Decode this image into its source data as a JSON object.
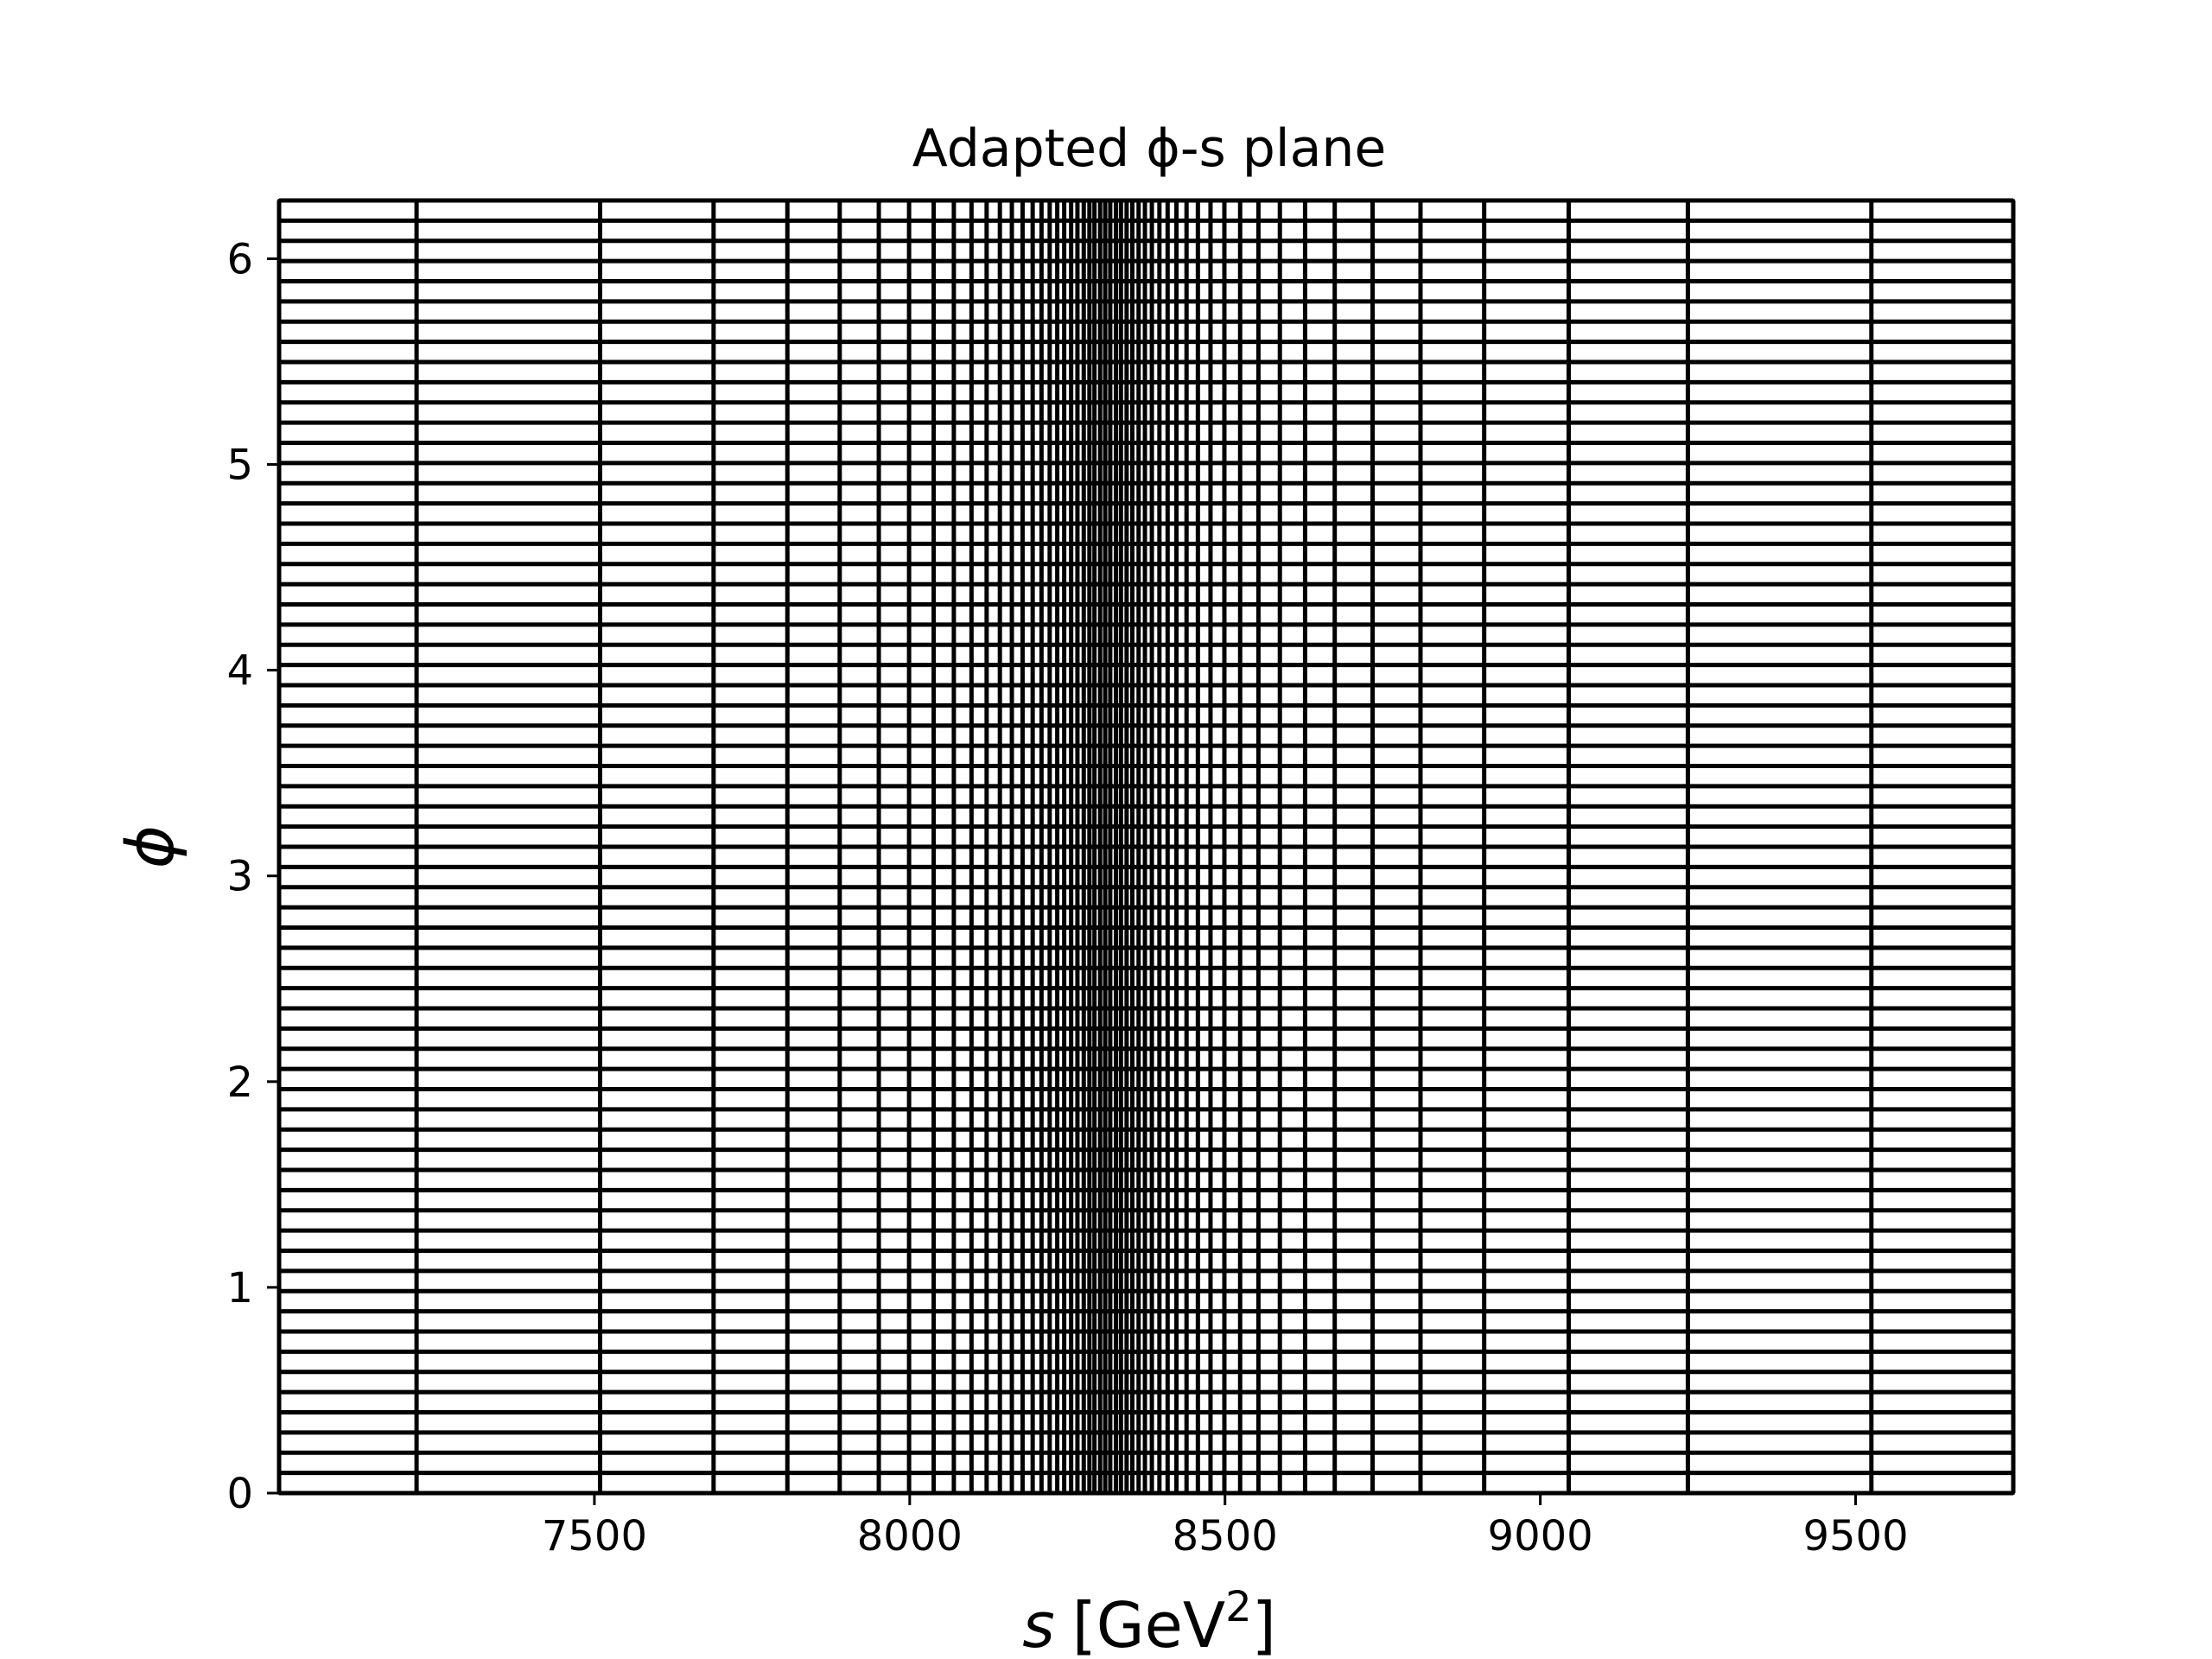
{
  "chart_data": {
    "type": "line",
    "title": "Adapted ϕ-s plane",
    "xlabel": "s [GeV²]",
    "xlabel_parts": {
      "var": "s",
      "unit_base": "[GeV",
      "unit_sup": "2",
      "unit_close": "]"
    },
    "ylabel": "ϕ",
    "xlim": [
      7000,
      9750
    ],
    "ylim": [
      0,
      6.2832
    ],
    "grid": false,
    "line_color": "#000000",
    "x_ticks": [
      7500,
      8000,
      8500,
      9000,
      9500
    ],
    "x_tick_labels": [
      "7500",
      "8000",
      "8500",
      "9000",
      "9500"
    ],
    "y_ticks": [
      0,
      1,
      2,
      3,
      4,
      5,
      6
    ],
    "y_tick_labels": [
      "0",
      "1",
      "2",
      "3",
      "4",
      "5",
      "6"
    ],
    "vertical_lines_s": [
      7000.0,
      7218.0,
      7509.0,
      7689.0,
      7806.0,
      7889.0,
      7951.0,
      7999.0,
      8038.0,
      8070.0,
      8098.0,
      8122.0,
      8143.0,
      8162.0,
      8179.0,
      8195.0,
      8209.0,
      8222.0,
      8234.0,
      8245.0,
      8256.0,
      8266.0,
      8276.0,
      8285.0,
      8293.0,
      8302.0,
      8310.0,
      8318.0,
      8327.0,
      8335.0,
      8344.0,
      8353.0,
      8363.0,
      8373.0,
      8384.0,
      8396.0,
      8409.0,
      8423.0,
      8439.0,
      8457.0,
      8477.0,
      8499.0,
      8524.0,
      8553.0,
      8587.0,
      8627.0,
      8674.0,
      8734.0,
      8810.0,
      8911.0,
      9045.0,
      9234.0,
      9525.0,
      9750.0
    ],
    "horizontal_lines_phi_count": 64
  }
}
